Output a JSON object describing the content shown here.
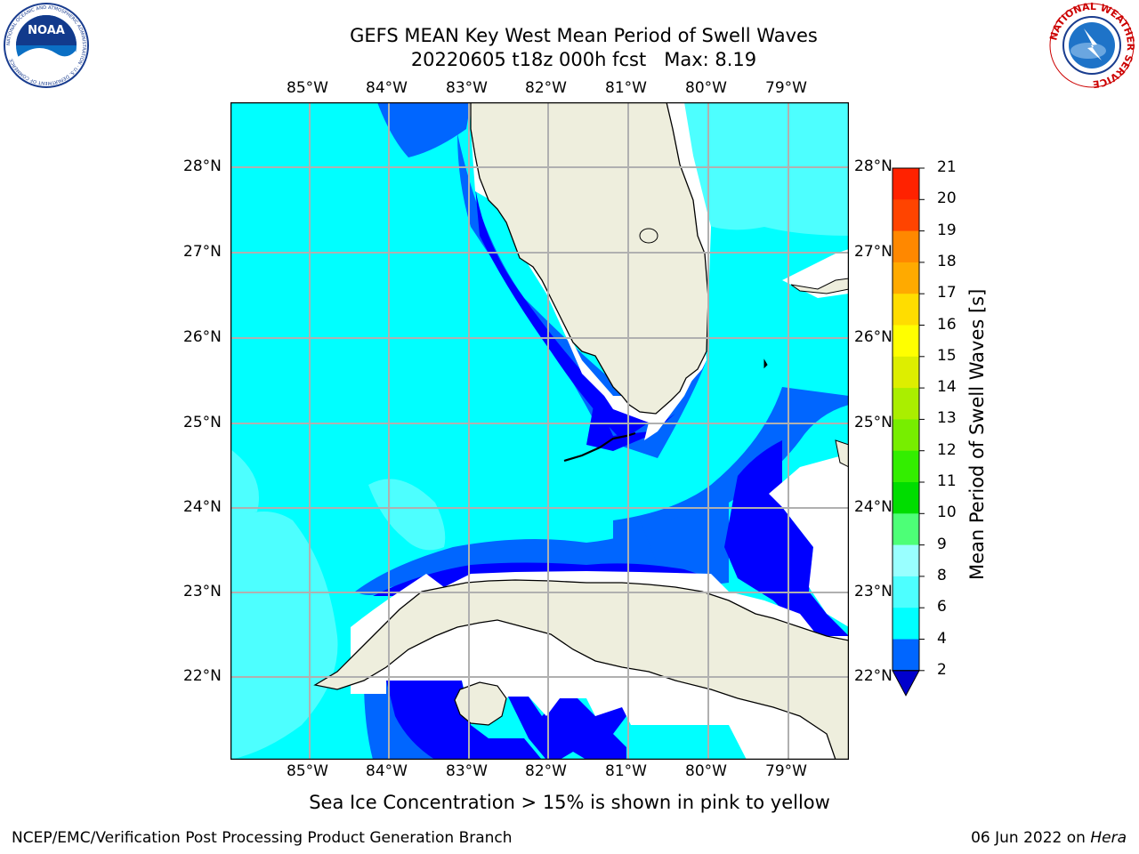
{
  "title_line1": "GEFS MEAN Key West Mean Period of Swell Waves",
  "title_line2": "20220605 t18z 000h fcst   Max: 8.19",
  "lon_ticks": [
    "85°W",
    "84°W",
    "83°W",
    "82°W",
    "81°W",
    "80°W",
    "79°W"
  ],
  "lat_ticks": [
    "28°N",
    "27°N",
    "26°N",
    "25°N",
    "24°N",
    "23°N",
    "22°N"
  ],
  "colorbar": {
    "label": "Mean Period of Swell Waves [s]",
    "ticks": [
      "2",
      "4",
      "6",
      "8",
      "9",
      "10",
      "11",
      "12",
      "13",
      "14",
      "15",
      "16",
      "17",
      "18",
      "19",
      "20",
      "21"
    ],
    "colors": [
      "#0000ff",
      "#0066ff",
      "#00ffff",
      "#4dffff",
      "#99ffff",
      "#4dff77",
      "#00dd00",
      "#33ee00",
      "#77ee00",
      "#aaee00",
      "#ddee00",
      "#ffff00",
      "#ffdd00",
      "#ffaa00",
      "#ff8800",
      "#ff4400",
      "#ff2200",
      "#ff0000"
    ],
    "extend_color": "#0000cc"
  },
  "sea_ice_note": "Sea Ice Concentration > 15% is shown in pink to yellow",
  "footer_left": "NCEP/EMC/Verification Post Processing Product Generation Branch",
  "footer_right_prefix": "06 Jun 2022 on ",
  "footer_right_host": "Hera",
  "logos": {
    "noaa_text": "NOAA",
    "noaa_ring": "NATIONAL OCEANIC AND ATMOSPHERIC ADMINISTRATION · U.S. DEPARTMENT OF COMMERCE",
    "nws_ring": "NATIONAL WEATHER SERVICE"
  },
  "colors": {
    "land": "#eeeedd",
    "cyan": "#00ffff",
    "light_cyan": "#4dffff",
    "blue": "#0066ff",
    "deep_blue": "#0000ff",
    "grid": "#b0b0b0"
  }
}
